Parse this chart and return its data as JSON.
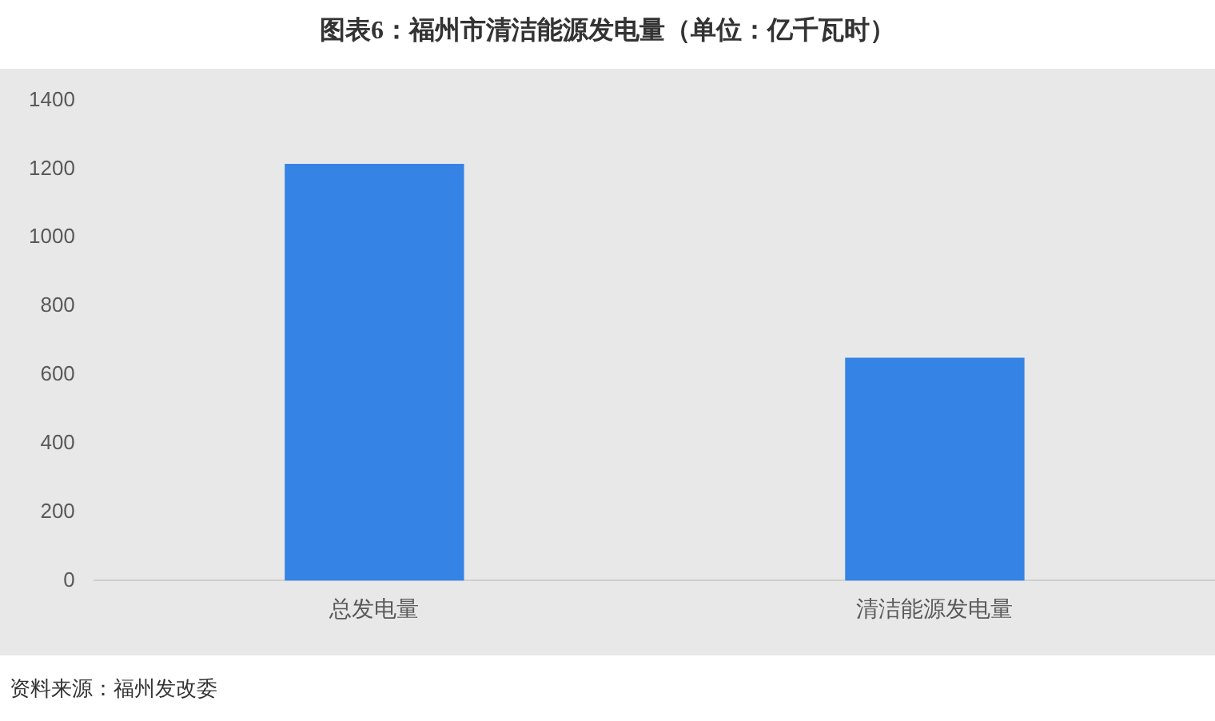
{
  "chart_data": {
    "type": "bar",
    "title": "图表6：福州市清洁能源发电量（单位：亿千瓦时）",
    "categories": [
      "总发电量",
      "清洁能源发电量"
    ],
    "values": [
      1215,
      650
    ],
    "color": "#3483e5",
    "ylim": [
      0,
      1400
    ],
    "yticks": [
      0,
      200,
      400,
      600,
      800,
      1000,
      1200,
      1400
    ],
    "annotations": [
      "资料来源：福州发改委"
    ]
  }
}
